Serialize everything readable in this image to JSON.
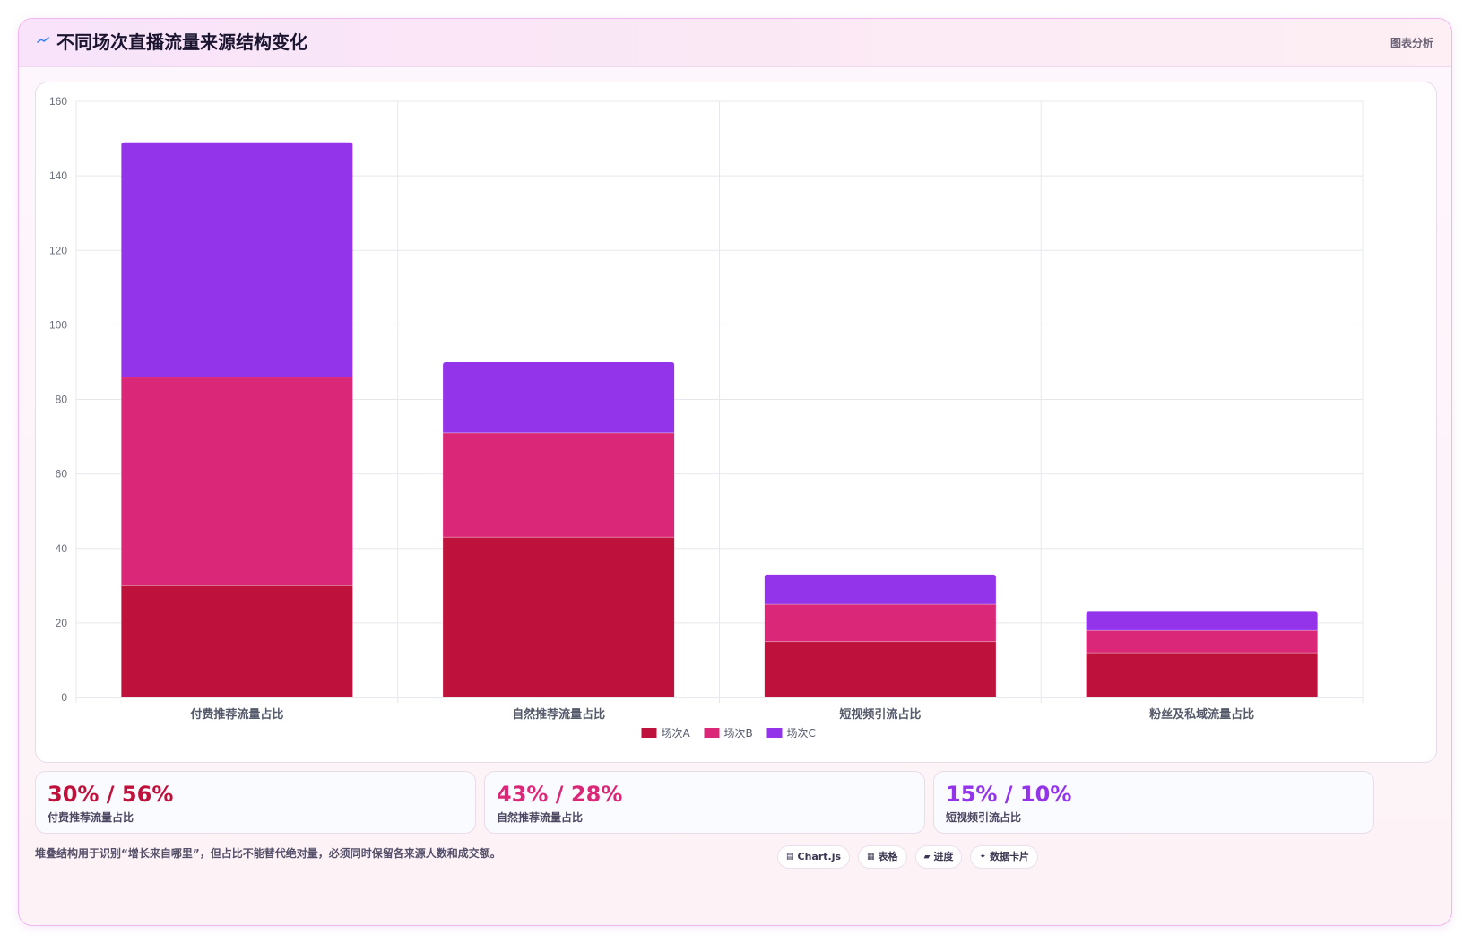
{
  "header": {
    "title": "不同场次直播流量来源结构变化",
    "right_label": "图表分析",
    "icon": "line-wave-icon",
    "icon_color": "#3b82f6"
  },
  "chart_data": {
    "type": "bar",
    "stacked": true,
    "title": "",
    "xlabel": "",
    "ylabel": "",
    "categories": [
      "付费推荐流量占比",
      "自然推荐流量占比",
      "短视频引流占比",
      "粉丝及私域流量占比"
    ],
    "series": [
      {
        "name": "场次A",
        "color": "#be123c",
        "values": [
          30,
          43,
          15,
          12
        ]
      },
      {
        "name": "场次B",
        "color": "#db2777",
        "values": [
          56,
          28,
          10,
          6
        ]
      },
      {
        "name": "场次C",
        "color": "#9333ea",
        "values": [
          63,
          19,
          8,
          5
        ]
      }
    ],
    "ylim": [
      0,
      160
    ],
    "yticks": [
      0,
      20,
      40,
      60,
      80,
      100,
      120,
      140,
      160
    ],
    "grid": true,
    "legend": "bottom-center"
  },
  "stats": [
    {
      "value": "30% / 56%",
      "label": "付费推荐流量占比",
      "color": "#be123c"
    },
    {
      "value": "43% / 28%",
      "label": "自然推荐流量占比",
      "color": "#db2777"
    },
    {
      "value": "15% / 10%",
      "label": "短视频引流占比",
      "color": "#9333ea"
    }
  ],
  "footnote": "堆叠结构用于识别“增长来自哪里”，但占比不能替代绝对量，必须同时保留各来源人数和成交额。",
  "badges": [
    {
      "icon": "▤",
      "icon_name": "chart-icon",
      "label": "Chart.js"
    },
    {
      "icon": "▦",
      "icon_name": "table-icon",
      "label": "表格"
    },
    {
      "icon": "▰",
      "icon_name": "progress-icon",
      "label": "进度"
    },
    {
      "icon": "✦",
      "icon_name": "sparkle-icon",
      "label": "数据卡片"
    }
  ]
}
